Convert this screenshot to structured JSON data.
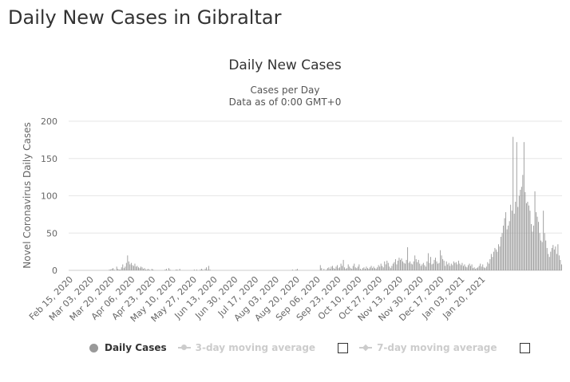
{
  "page": {
    "title": "Daily New Cases in Gibraltar"
  },
  "chart_data": {
    "type": "bar",
    "title": "Daily New Cases",
    "subtitle_lines": [
      "Cases per Day",
      "Data as of 0:00 GMT+0"
    ],
    "xlabel": "",
    "ylabel": "Novel Coronavirus Daily Cases",
    "ylim": [
      0,
      200
    ],
    "y_ticks": [
      "0",
      "50",
      "100",
      "150",
      "200"
    ],
    "grid": true,
    "x_tick_labels": [
      "Feb 15, 2020",
      "Mar 03, 2020",
      "Mar 20, 2020",
      "Apr 06, 2020",
      "Apr 23, 2020",
      "May 10, 2020",
      "May 27, 2020",
      "Jun 13, 2020",
      "Jun 30, 2020",
      "Jul 17, 2020",
      "Aug 03, 2020",
      "Aug 20, 2020",
      "Sep 06, 2020",
      "Sep 23, 2020",
      "Oct 10, 2020",
      "Oct 27, 2020",
      "Nov 13, 2020",
      "Nov 30, 2020",
      "Dec 17, 2020",
      "Jan 03, 2021",
      "Jan 20, 2021"
    ],
    "start_date": "Feb 15, 2020",
    "series": [
      {
        "name": "Daily Cases",
        "color": "#999999",
        "values": [
          0,
          0,
          0,
          0,
          0,
          0,
          0,
          0,
          0,
          0,
          0,
          0,
          0,
          0,
          0,
          0,
          0,
          0,
          0,
          0,
          0,
          0,
          0,
          0,
          0,
          0,
          0,
          0,
          0,
          0,
          0,
          0,
          0,
          1,
          1,
          2,
          3,
          1,
          0,
          5,
          2,
          1,
          1,
          4,
          8,
          3,
          5,
          10,
          20,
          12,
          8,
          10,
          7,
          6,
          9,
          5,
          6,
          4,
          3,
          5,
          4,
          2,
          3,
          1,
          1,
          2,
          1,
          0,
          2,
          1,
          0,
          0,
          0,
          0,
          0,
          0,
          0,
          0,
          0,
          1,
          2,
          0,
          3,
          1,
          0,
          0,
          0,
          0,
          1,
          1,
          0,
          2,
          0,
          0,
          0,
          0,
          0,
          0,
          0,
          0,
          0,
          0,
          0,
          1,
          0,
          1,
          0,
          0,
          1,
          2,
          1,
          0,
          2,
          4,
          1,
          6,
          1,
          0,
          0,
          0,
          0,
          0,
          0,
          0,
          0,
          0,
          0,
          0,
          0,
          0,
          0,
          0,
          0,
          0,
          0,
          0,
          0,
          0,
          0,
          0,
          0,
          0,
          0,
          0,
          0,
          0,
          0,
          0,
          0,
          0,
          0,
          0,
          0,
          0,
          0,
          0,
          0,
          0,
          0,
          0,
          0,
          0,
          0,
          0,
          0,
          0,
          0,
          0,
          0,
          0,
          0,
          0,
          0,
          0,
          0,
          0,
          0,
          0,
          0,
          0,
          0,
          0,
          0,
          0,
          1,
          0,
          0,
          1,
          2,
          0,
          0,
          0,
          0,
          0,
          0,
          0,
          0,
          0,
          0,
          0,
          0,
          0,
          0,
          0,
          0,
          0,
          0,
          7,
          3,
          0,
          2,
          0,
          1,
          3,
          4,
          2,
          5,
          6,
          3,
          2,
          5,
          7,
          3,
          4,
          9,
          6,
          14,
          4,
          2,
          3,
          8,
          5,
          3,
          2,
          6,
          9,
          4,
          3,
          5,
          8,
          2,
          1,
          3,
          4,
          2,
          5,
          3,
          2,
          4,
          6,
          3,
          5,
          3,
          2,
          4,
          7,
          5,
          9,
          6,
          4,
          12,
          8,
          13,
          10,
          5,
          3,
          6,
          9,
          11,
          15,
          8,
          13,
          17,
          14,
          16,
          12,
          10,
          9,
          14,
          31,
          10,
          12,
          9,
          8,
          12,
          20,
          15,
          11,
          14,
          9,
          6,
          8,
          10,
          7,
          5,
          12,
          23,
          10,
          18,
          8,
          9,
          14,
          17,
          12,
          9,
          10,
          27,
          20,
          15,
          13,
          6,
          12,
          8,
          10,
          6,
          9,
          7,
          12,
          10,
          11,
          8,
          13,
          9,
          7,
          10,
          6,
          8,
          5,
          4,
          7,
          9,
          6,
          8,
          3,
          4,
          2,
          3,
          4,
          6,
          9,
          5,
          8,
          4,
          3,
          5,
          11,
          9,
          15,
          22,
          18,
          25,
          30,
          28,
          25,
          35,
          32,
          45,
          50,
          60,
          70,
          78,
          55,
          60,
          66,
          88,
          80,
          179,
          76,
          92,
          172,
          85,
          100,
          108,
          112,
          128,
          172,
          105,
          90,
          92,
          87,
          80,
          62,
          52,
          60,
          106,
          78,
          72,
          65,
          50,
          40,
          38,
          80,
          50,
          40,
          30,
          22,
          18,
          25,
          30,
          34,
          28,
          32,
          22,
          35,
          20,
          14,
          8
        ]
      }
    ],
    "legend": {
      "position": "bottom-left",
      "items": [
        {
          "name": "Daily Cases",
          "color": "#999999",
          "style": "dot",
          "active": true
        },
        {
          "name": "3-day moving average",
          "color": "#cccccc",
          "style": "line-dot",
          "active": false
        },
        {
          "name": "7-day moving average",
          "color": "#cccccc",
          "style": "line-diamond",
          "active": false
        }
      ]
    }
  }
}
